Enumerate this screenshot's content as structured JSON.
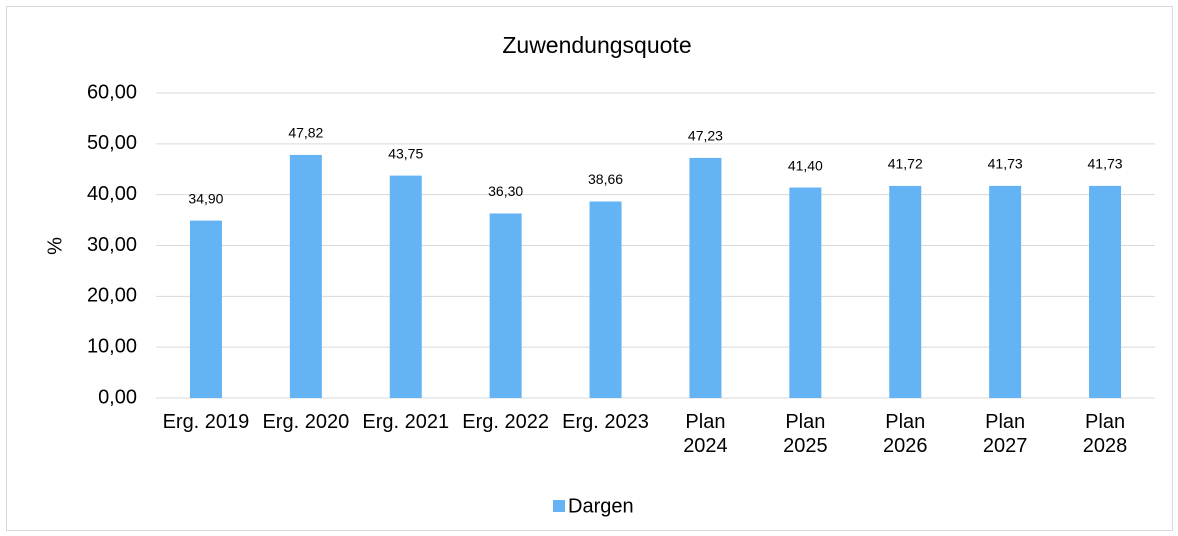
{
  "chart_data": {
    "type": "bar",
    "title": "Zuwendungsquote",
    "y_label": "%",
    "categories": [
      "Erg. 2019",
      "Erg. 2020",
      "Erg. 2021",
      "Erg. 2022",
      "Erg. 2023",
      "Plan 2024",
      "Plan 2025",
      "Plan 2026",
      "Plan 2027",
      "Plan 2028"
    ],
    "series": [
      {
        "name": "Dargen",
        "color": "#63b3f5",
        "values": [
          34.9,
          47.82,
          43.75,
          36.3,
          38.66,
          47.23,
          41.4,
          41.72,
          41.73,
          41.73
        ],
        "value_labels": [
          "34,90",
          "47,82",
          "43,75",
          "36,30",
          "38,66",
          "47,23",
          "41,40",
          "41,72",
          "41,73",
          "41,73"
        ]
      }
    ],
    "ylim": [
      0,
      60
    ],
    "yticks": [
      {
        "value": 0,
        "label": "0,00"
      },
      {
        "value": 10,
        "label": "10,00"
      },
      {
        "value": 20,
        "label": "20,00"
      },
      {
        "value": 30,
        "label": "30,00"
      },
      {
        "value": 40,
        "label": "40,00"
      },
      {
        "value": 50,
        "label": "50,00"
      },
      {
        "value": 60,
        "label": "60,00"
      }
    ],
    "grid": true,
    "legend": "bottom"
  }
}
